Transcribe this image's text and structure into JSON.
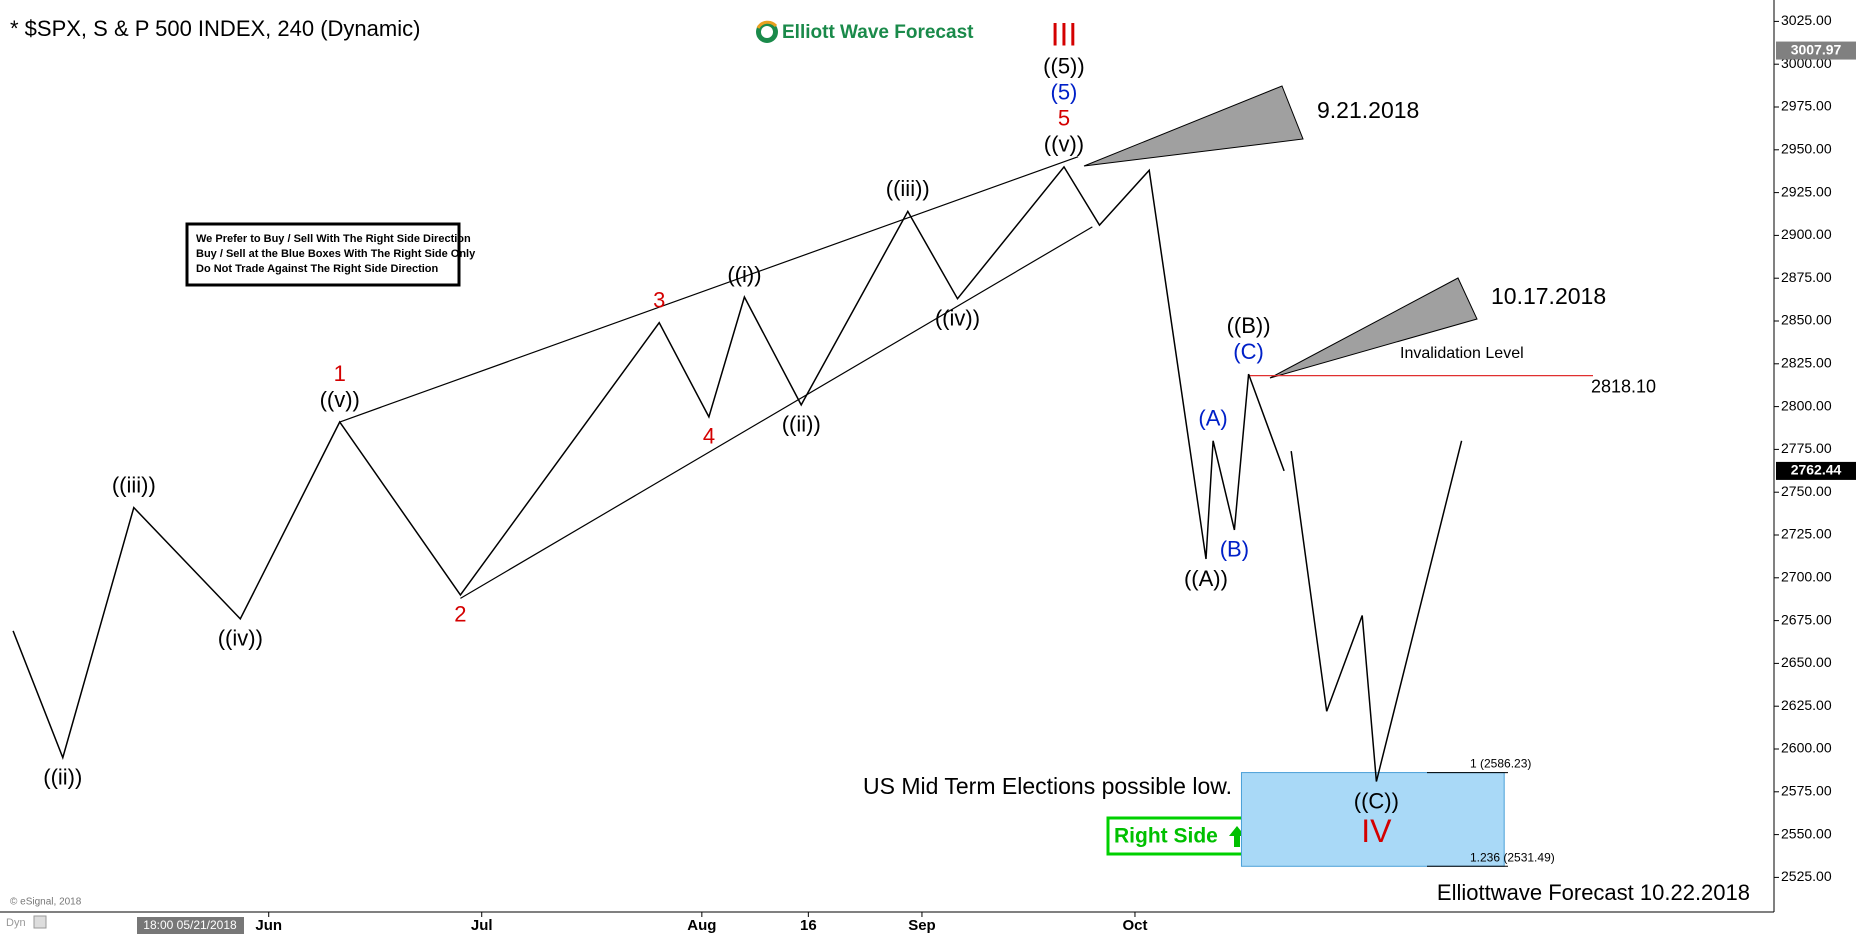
{
  "chart_data": {
    "type": "line",
    "title": "* $SPX, S & P 500 INDEX, 240 (Dynamic)",
    "logo": "Elliott Wave Forecast",
    "info_box": [
      "We Prefer to Buy / Sell With The Right Side Direction",
      "Buy / Sell at the Blue Boxes With The Right Side Only",
      "Do Not Trade Against The Right Side Direction"
    ],
    "date_labels": [
      "9.21.2018",
      "10.17.2018"
    ],
    "note": "US Mid Term Elections possible low.",
    "right_side": "Right Side",
    "footer": "Elliottwave Forecast 10.22.2018",
    "copyright": "© eSignal, 2018",
    "toolbar": "Dyn",
    "cursor_date": "18:00 05/21/2018",
    "xlim": [
      "2018-04-25",
      "2018-12-30"
    ],
    "xticks": [
      {
        "value": "2018-06-01",
        "label": "Jun"
      },
      {
        "value": "2018-07-01",
        "label": "Jul"
      },
      {
        "value": "2018-08-01",
        "label": "Aug"
      },
      {
        "value": "2018-08-16",
        "label": "16"
      },
      {
        "value": "2018-09-01",
        "label": "Sep"
      },
      {
        "value": "2018-10-01",
        "label": "Oct"
      }
    ],
    "ylim": [
      2525,
      3025
    ],
    "yticks": [
      {
        "value": 3025,
        "label": "3025.00"
      },
      {
        "value": 3000,
        "label": "3000.00"
      },
      {
        "value": 2975,
        "label": "2975.00"
      },
      {
        "value": 2950,
        "label": "2950.00"
      },
      {
        "value": 2925,
        "label": "2925.00"
      },
      {
        "value": 2900,
        "label": "2900.00"
      },
      {
        "value": 2875,
        "label": "2875.00"
      },
      {
        "value": 2850,
        "label": "2850.00"
      },
      {
        "value": 2825,
        "label": "2825.00"
      },
      {
        "value": 2800,
        "label": "2800.00"
      },
      {
        "value": 2775,
        "label": "2775.00"
      },
      {
        "value": 2750,
        "label": "2750.00"
      },
      {
        "value": 2725,
        "label": "2725.00"
      },
      {
        "value": 2700,
        "label": "2700.00"
      },
      {
        "value": 2675,
        "label": "2675.00"
      },
      {
        "value": 2650,
        "label": "2650.00"
      },
      {
        "value": 2625,
        "label": "2625.00"
      },
      {
        "value": 2600,
        "label": "2600.00"
      },
      {
        "value": 2575,
        "label": "2575.00"
      },
      {
        "value": 2550,
        "label": "2550.00"
      },
      {
        "value": 2525,
        "label": "2525.00"
      }
    ],
    "price_markers": [
      {
        "value": 3007.97,
        "label": "3007.97",
        "color": "#808080"
      },
      {
        "value": 2762.44,
        "label": "2762.44",
        "color": "#000000"
      }
    ],
    "series": [
      {
        "name": "price",
        "color": "#000000",
        "x": [
          "2018-04-26",
          "2018-05-03",
          "2018-05-13",
          "2018-05-28",
          "2018-06-11",
          "2018-06-28",
          "2018-07-26",
          "2018-08-02",
          "2018-08-07",
          "2018-08-15",
          "2018-08-30",
          "2018-09-06",
          "2018-09-21",
          "2018-09-26",
          "2018-10-03",
          "2018-10-11",
          "2018-10-12",
          "2018-10-15",
          "2018-10-17",
          "2018-10-22"
        ],
        "values": [
          2669,
          2595,
          2741,
          2676,
          2791,
          2690,
          2849,
          2794,
          2864,
          2801,
          2914,
          2863,
          2940,
          2906,
          2938,
          2711,
          2780,
          2728,
          2819,
          2762.44
        ],
        "labels": [
          [],
          [
            {
              "text": "((ii))",
              "color": "#000000"
            }
          ],
          [
            {
              "text": "((iii))",
              "color": "#000000"
            }
          ],
          [
            {
              "text": "((iv))",
              "color": "#000000"
            }
          ],
          [
            {
              "text": "((v))",
              "color": "#000000"
            },
            {
              "text": "1",
              "color": "#d40000"
            }
          ],
          [
            {
              "text": "2",
              "color": "#d40000"
            }
          ],
          [
            {
              "text": "3",
              "color": "#d40000"
            }
          ],
          [
            {
              "text": "4",
              "color": "#d40000"
            }
          ],
          [
            {
              "text": "((i))",
              "color": "#000000"
            }
          ],
          [
            {
              "text": "((ii))",
              "color": "#000000"
            }
          ],
          [
            {
              "text": "((iii))",
              "color": "#000000"
            }
          ],
          [
            {
              "text": "((iv))",
              "color": "#000000"
            }
          ],
          [
            {
              "text": "((v))",
              "color": "#000000"
            },
            {
              "text": "5",
              "color": "#d40000"
            },
            {
              "text": "(5)",
              "color": "#0020c8"
            },
            {
              "text": "((5))",
              "color": "#000000"
            },
            {
              "text": "III",
              "color": "#d40000"
            }
          ],
          [],
          [],
          [
            {
              "text": "((A))",
              "color": "#000000"
            }
          ],
          [
            {
              "text": "(A)",
              "color": "#0020c8"
            }
          ],
          [
            {
              "text": "(B)",
              "color": "#0020c8"
            }
          ],
          [
            {
              "text": "(C)",
              "color": "#0020c8"
            },
            {
              "text": "((B))",
              "color": "#000000"
            }
          ],
          []
        ]
      },
      {
        "name": "projection",
        "color": "#000000",
        "x": [
          "2018-10-23",
          "2018-10-28",
          "2018-11-02",
          "2018-11-04",
          "2018-11-16"
        ],
        "values": [
          2774,
          2622,
          2678,
          2581,
          2780
        ],
        "labels": [
          [],
          [],
          [],
          [
            {
              "text": "((C))",
              "color": "#000000"
            },
            {
              "text": "IV",
              "color": "#d40000"
            }
          ],
          []
        ]
      }
    ],
    "trendlines": [
      {
        "x": [
          "2018-06-11",
          "2018-09-23"
        ],
        "values": [
          2791,
          2946
        ]
      },
      {
        "x": [
          "2018-06-28",
          "2018-09-25"
        ],
        "values": [
          2688,
          2905
        ]
      }
    ],
    "invalidation": {
      "text": "Invalidation Level",
      "value": 2818.1,
      "label": "2818.10",
      "color": "#e03030"
    },
    "fib_levels": [
      {
        "value": 2586.23,
        "label": "1 (2586.23)"
      },
      {
        "value": 2531.49,
        "label": "1.236 (2531.49)"
      }
    ],
    "blue_box": {
      "x": [
        "2018-10-16",
        "2018-11-22"
      ],
      "values": [
        2586.23,
        2531.49
      ],
      "color": "#a9d9f7"
    }
  }
}
